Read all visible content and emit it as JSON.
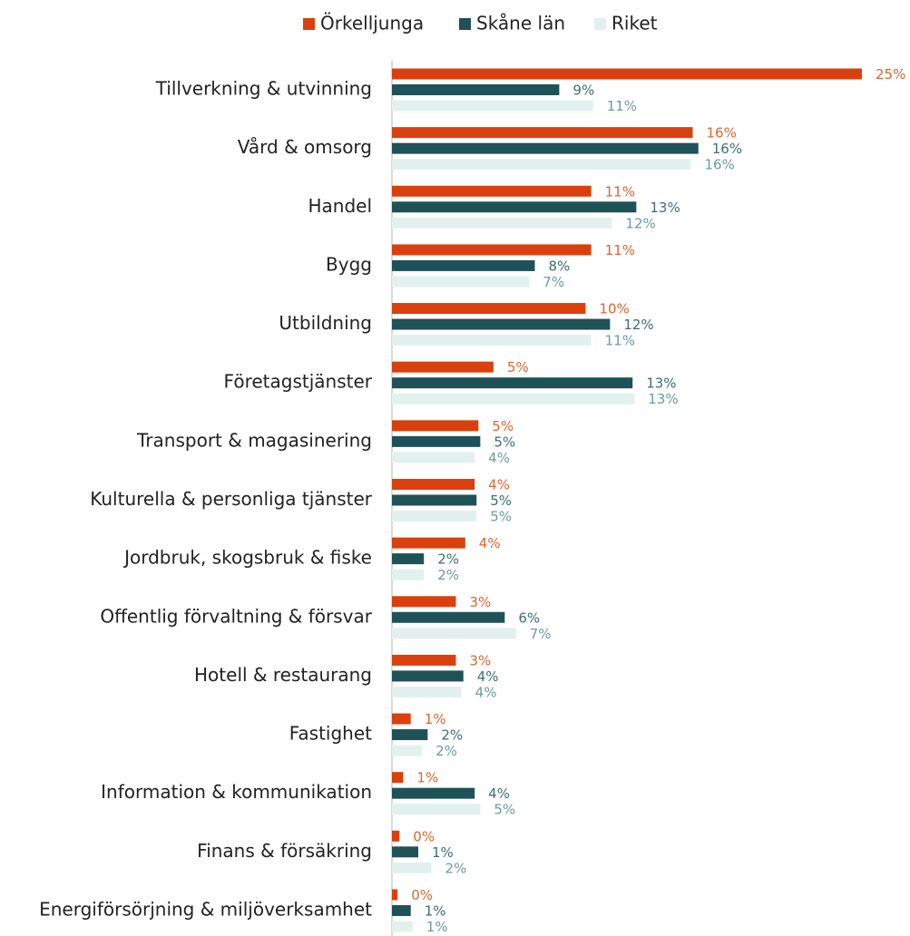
{
  "chart_data": {
    "type": "hbar",
    "categories": [
      "Tillverkning & utvinning",
      "Vård & omsorg",
      "Handel",
      "Bygg",
      "Utbildning",
      "Företagstjänster",
      "Transport & magasinering",
      "Kulturella & personliga tjänster",
      "Jordbruk, skogsbruk & fiske",
      "Offentlig förvaltning & försvar",
      "Hotell & restaurang",
      "Fastighet",
      "Information & kommunikation",
      "Finans & försäkring",
      "Energiförsörjning & miljöverksamhet"
    ],
    "series": [
      {
        "name": "Örkelljunga",
        "color": "#d9400e",
        "values": [
          25.0,
          16.0,
          10.6,
          10.6,
          10.3,
          5.4,
          4.6,
          4.4,
          3.9,
          3.4,
          3.4,
          1.0,
          0.6,
          0.4,
          0.3
        ],
        "value_labels": [
          "25%",
          "16%",
          "11%",
          "11%",
          "10%",
          "5%",
          "5%",
          "4%",
          "4%",
          "3%",
          "3%",
          "1%",
          "1%",
          "0%",
          "0%"
        ]
      },
      {
        "name": "Skåne län",
        "color": "#1f5257",
        "values": [
          8.9,
          16.3,
          13.0,
          7.6,
          11.6,
          12.8,
          4.7,
          4.5,
          1.7,
          6.0,
          3.8,
          1.9,
          4.4,
          1.4,
          1.0
        ],
        "value_labels": [
          "9%",
          "16%",
          "13%",
          "8%",
          "12%",
          "13%",
          "5%",
          "5%",
          "2%",
          "6%",
          "4%",
          "2%",
          "4%",
          "1%",
          "1%"
        ]
      },
      {
        "name": "Riket",
        "color": "#e3f1ee",
        "values": [
          10.7,
          15.9,
          11.7,
          7.3,
          10.6,
          12.9,
          4.4,
          4.5,
          1.7,
          6.6,
          3.7,
          1.6,
          4.7,
          2.1,
          1.1
        ],
        "value_labels": [
          "11%",
          "16%",
          "12%",
          "7%",
          "11%",
          "13%",
          "4%",
          "5%",
          "2%",
          "7%",
          "4%",
          "2%",
          "5%",
          "2%",
          "1%"
        ]
      }
    ]
  }
}
